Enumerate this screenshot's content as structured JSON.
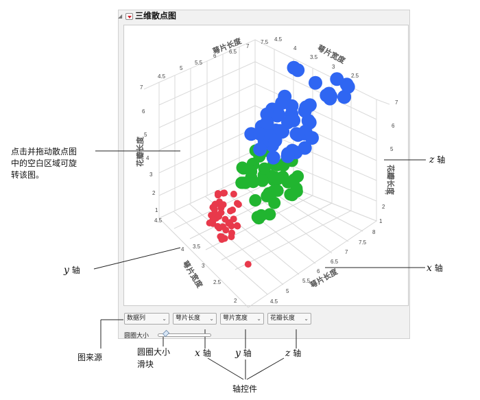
{
  "window": {
    "title": "三维散点图"
  },
  "controls": {
    "source": {
      "label": "数据列"
    },
    "x_axis": {
      "label": "萼片长度"
    },
    "y_axis": {
      "label": "萼片宽度"
    },
    "z_axis": {
      "label": "花瓣长度"
    },
    "slider_label": "圆圈大小",
    "slider_value": 0.15
  },
  "axes": {
    "back_labels": {
      "top_left": "萼片长度",
      "top_right": "萼片宽度"
    },
    "left_z_label": "花瓣长度",
    "right_z_label": "花瓣长度",
    "bottom_y_label": "萼片宽度",
    "bottom_x_label": "萼片长度",
    "back_top_left_ticks": [
      "4.5",
      "5",
      "5.5",
      "6",
      "6.5",
      "7",
      "7.5"
    ],
    "back_top_right_ticks": [
      "4.5",
      "4",
      "3.5",
      "3",
      "2.5"
    ],
    "left_z_ticks": [
      "7",
      "6",
      "5",
      "4",
      "3",
      "2",
      "1"
    ],
    "right_z_ticks": [
      "7",
      "6",
      "5",
      "4",
      "3",
      "2",
      "1"
    ],
    "bottom_y_ticks": [
      "4.5",
      "4",
      "3.5",
      "3",
      "2.5",
      "2"
    ],
    "bottom_x_ticks": [
      "8",
      "7.5",
      "7",
      "6.5",
      "6",
      "5.5",
      "5",
      "4.5"
    ]
  },
  "annotations": {
    "rotate": [
      "点击并拖动散点图",
      "中的空白区域可旋",
      "转该图。"
    ],
    "z_axis": {
      "var": "z",
      "suffix": " 轴"
    },
    "y_axis": {
      "var": "y",
      "suffix": " 轴"
    },
    "x_axis": {
      "var": "x",
      "suffix": " 轴"
    },
    "source": "图来源",
    "slider": [
      "圆圈大小",
      "滑块"
    ],
    "bottom_x": {
      "var": "x",
      "suffix": " 轴"
    },
    "bottom_y": {
      "var": "y",
      "suffix": " 轴"
    },
    "bottom_z": {
      "var": "z",
      "suffix": " 轴"
    },
    "axis_controls": "轴控件"
  },
  "colors": {
    "red": "#e8394b",
    "green": "#21b530",
    "blue": "#2f66f2"
  }
}
